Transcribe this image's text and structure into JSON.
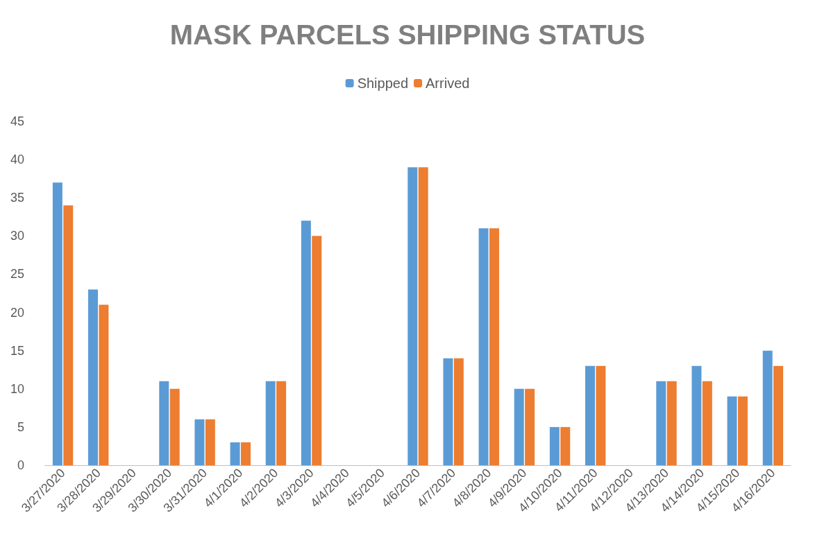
{
  "chart_data": {
    "type": "bar",
    "title": "MASK PARCELS SHIPPING STATUS",
    "categories": [
      "3/27/2020",
      "3/28/2020",
      "3/29/2020",
      "3/30/2020",
      "3/31/2020",
      "4/1/2020",
      "4/2/2020",
      "4/3/2020",
      "4/4/2020",
      "4/5/2020",
      "4/6/2020",
      "4/7/2020",
      "4/8/2020",
      "4/9/2020",
      "4/10/2020",
      "4/11/2020",
      "4/12/2020",
      "4/13/2020",
      "4/14/2020",
      "4/15/2020",
      "4/16/2020"
    ],
    "series": [
      {
        "name": "Shipped",
        "color": "#5b9bd5",
        "values": [
          37,
          23,
          0,
          11,
          6,
          3,
          11,
          32,
          0,
          0,
          39,
          14,
          31,
          10,
          5,
          13,
          0,
          11,
          13,
          9,
          15
        ]
      },
      {
        "name": "Arrived",
        "color": "#ed7d31",
        "values": [
          34,
          21,
          0,
          10,
          6,
          3,
          11,
          30,
          0,
          0,
          39,
          14,
          31,
          10,
          5,
          13,
          0,
          11,
          11,
          9,
          13
        ]
      }
    ],
    "ylim": [
      0,
      45
    ],
    "yticks": [
      0,
      5,
      10,
      15,
      20,
      25,
      30,
      35,
      40,
      45
    ],
    "grid": false,
    "legend": "top"
  }
}
